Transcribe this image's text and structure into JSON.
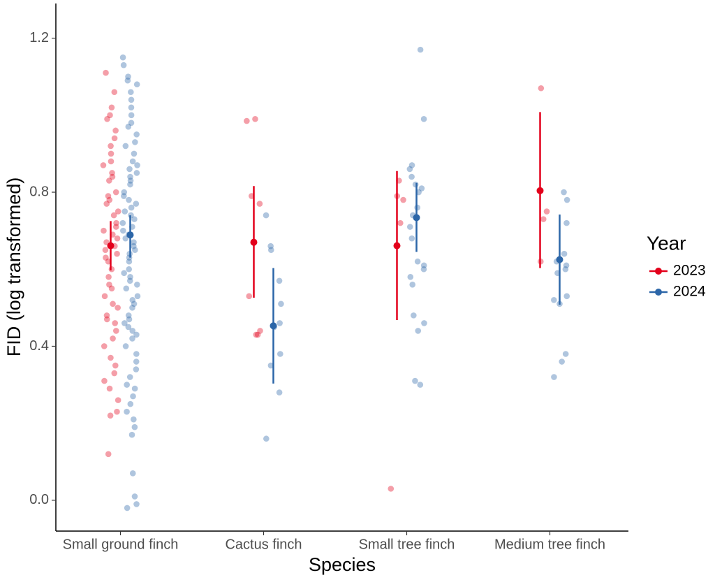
{
  "chart_data": {
    "type": "strip-mean-ci",
    "x_label": "Species",
    "y_label": "FID (log transformed)",
    "legend_title": "Year",
    "legend_position": "right",
    "categories": [
      "Small ground finch",
      "Cactus finch",
      "Small tree finch",
      "Medium tree finch"
    ],
    "ylim": [
      -0.08,
      1.29
    ],
    "yticks": [
      {
        "value": 0,
        "label": "0.0"
      },
      0.4,
      0.8,
      1.2
    ],
    "grid": false,
    "series": [
      {
        "name": "2023",
        "color": "#e3001b",
        "mean": [
          0.661,
          0.67,
          0.661,
          0.804
        ],
        "lower": [
          0.597,
          0.526,
          0.468,
          0.603
        ],
        "upper": [
          0.725,
          0.816,
          0.855,
          1.008
        ],
        "points": [
          [
            1.11,
            1.06,
            1.02,
            1.0,
            0.99,
            0.96,
            0.94,
            0.92,
            0.9,
            0.88,
            0.87,
            0.85,
            0.84,
            0.83,
            0.8,
            0.79,
            0.78,
            0.77,
            0.75,
            0.74,
            0.72,
            0.71,
            0.7,
            0.69,
            0.68,
            0.67,
            0.66,
            0.65,
            0.64,
            0.63,
            0.62,
            0.6,
            0.58,
            0.56,
            0.55,
            0.53,
            0.51,
            0.5,
            0.48,
            0.47,
            0.46,
            0.44,
            0.42,
            0.4,
            0.37,
            0.35,
            0.33,
            0.31,
            0.29,
            0.26,
            0.23,
            0.22,
            0.12
          ],
          [
            0.99,
            0.985,
            0.79,
            0.77,
            0.53,
            0.44,
            0.43,
            0.43
          ],
          [
            0.83,
            0.79,
            0.78,
            0.72,
            0.03
          ],
          [
            1.07,
            0.75,
            0.73,
            0.62
          ]
        ]
      },
      {
        "name": "2024",
        "color": "#2c66a8",
        "mean": [
          0.689,
          0.453,
          0.734,
          0.625
        ],
        "lower": [
          0.63,
          0.303,
          0.645,
          0.508
        ],
        "upper": [
          0.74,
          0.603,
          0.824,
          0.742
        ],
        "points": [
          [
            1.15,
            1.13,
            1.1,
            1.09,
            1.08,
            1.06,
            1.04,
            1.02,
            1.0,
            0.98,
            0.97,
            0.95,
            0.93,
            0.92,
            0.9,
            0.88,
            0.87,
            0.86,
            0.85,
            0.84,
            0.83,
            0.82,
            0.8,
            0.79,
            0.78,
            0.77,
            0.76,
            0.75,
            0.74,
            0.73,
            0.72,
            0.71,
            0.7,
            0.69,
            0.68,
            0.67,
            0.66,
            0.65,
            0.64,
            0.63,
            0.62,
            0.6,
            0.59,
            0.58,
            0.57,
            0.56,
            0.55,
            0.53,
            0.52,
            0.51,
            0.5,
            0.48,
            0.47,
            0.46,
            0.45,
            0.44,
            0.43,
            0.42,
            0.4,
            0.38,
            0.36,
            0.34,
            0.32,
            0.3,
            0.29,
            0.27,
            0.25,
            0.23,
            0.21,
            0.19,
            0.17,
            0.07,
            0.01,
            -0.01,
            -0.02
          ],
          [
            0.74,
            0.66,
            0.65,
            0.57,
            0.51,
            0.46,
            0.45,
            0.38,
            0.35,
            0.28,
            0.16
          ],
          [
            1.17,
            0.99,
            0.87,
            0.86,
            0.84,
            0.82,
            0.81,
            0.8,
            0.76,
            0.74,
            0.71,
            0.68,
            0.62,
            0.61,
            0.6,
            0.58,
            0.56,
            0.48,
            0.46,
            0.44,
            0.31,
            0.3
          ],
          [
            0.8,
            0.78,
            0.72,
            0.64,
            0.62,
            0.61,
            0.6,
            0.59,
            0.53,
            0.52,
            0.51,
            0.38,
            0.36,
            0.32
          ]
        ]
      }
    ]
  }
}
